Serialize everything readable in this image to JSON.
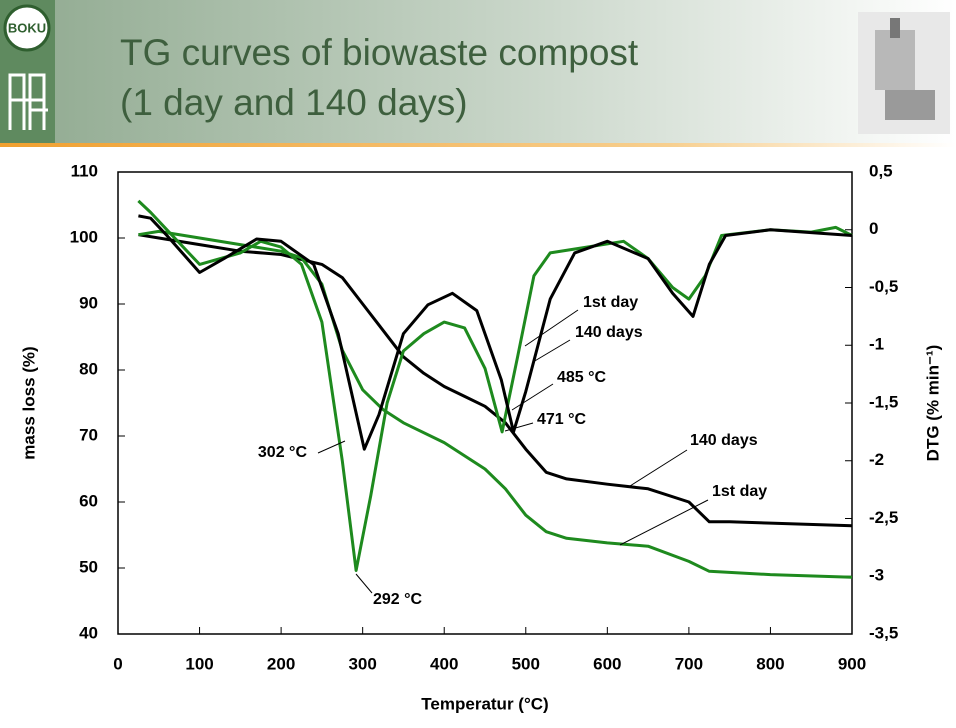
{
  "header": {
    "logo": "BOKU",
    "title_lines": [
      "TG curves of biowaste compost",
      "(1 day and 140 days)"
    ]
  },
  "chart_data": {
    "type": "line",
    "x_label": "Temperatur (°C)",
    "y_label": "mass loss (%)",
    "y2_label": "DTG (% min⁻¹)",
    "xlim": [
      0,
      900
    ],
    "xticks": [
      0,
      100,
      200,
      300,
      400,
      500,
      600,
      700,
      800,
      900
    ],
    "ylim": [
      40,
      110
    ],
    "yticks": [
      40,
      50,
      60,
      70,
      80,
      90,
      100,
      110
    ],
    "y2lim": [
      -3.5,
      0.5
    ],
    "y2ticks": [
      {
        "value": -3.5,
        "label": "-3,5"
      },
      -3,
      {
        "value": -2.5,
        "label": "-2,5"
      },
      -2,
      {
        "value": -1.5,
        "label": "-1,5"
      },
      -1,
      {
        "value": -0.5,
        "label": "-0,5"
      },
      0,
      {
        "value": 0.5,
        "label": "0,5"
      }
    ],
    "annotations": [
      "485 °C",
      "471 °C",
      "302 °C",
      "292 °C"
    ],
    "series": [
      {
        "name": "140 days",
        "color": "#000000",
        "axis": "y",
        "x": [
          25,
          50,
          100,
          150,
          200,
          250,
          275,
          300,
          325,
          350,
          375,
          400,
          425,
          450,
          475,
          500,
          525,
          550,
          600,
          650,
          700,
          725,
          750,
          800,
          900
        ],
        "values": [
          100.5,
          100,
          99,
          98,
          97.5,
          96,
          94,
          90,
          86,
          82,
          79.5,
          77.5,
          76,
          74.5,
          72,
          68,
          64.5,
          63.5,
          62.7,
          62,
          60,
          57,
          57,
          56.8,
          56.4
        ]
      },
      {
        "name": "1st day",
        "color": "#1e8a1e",
        "axis": "y",
        "x": [
          25,
          50,
          100,
          150,
          200,
          225,
          250,
          275,
          300,
          325,
          350,
          400,
          450,
          475,
          500,
          525,
          550,
          600,
          650,
          700,
          725,
          800,
          900
        ],
        "values": [
          100.5,
          101,
          100,
          99,
          98,
          97,
          93,
          83,
          77,
          74,
          72,
          69,
          65,
          62,
          58,
          55.5,
          54.5,
          53.8,
          53.3,
          51,
          49.5,
          49,
          48.6
        ]
      },
      {
        "name": "1st day",
        "color": "#1e8a1e",
        "axis": "y2",
        "x": [
          25,
          40,
          60,
          100,
          150,
          175,
          200,
          225,
          250,
          275,
          292,
          310,
          330,
          350,
          375,
          400,
          425,
          450,
          471,
          490,
          510,
          530,
          575,
          620,
          650,
          680,
          700,
          720,
          740,
          800,
          850,
          880,
          900
        ],
        "values": [
          0.25,
          0.15,
          0,
          -0.3,
          -0.2,
          -0.1,
          -0.15,
          -0.3,
          -0.8,
          -2,
          -2.95,
          -2.3,
          -1.5,
          -1.05,
          -0.9,
          -0.8,
          -0.85,
          -1.2,
          -1.75,
          -1.1,
          -0.4,
          -0.2,
          -0.15,
          -0.1,
          -0.25,
          -0.5,
          -0.6,
          -0.4,
          -0.05,
          0,
          -0.02,
          0.02,
          -0.05
        ]
      },
      {
        "name": "140 days",
        "color": "#000000",
        "axis": "y2",
        "x": [
          25,
          40,
          60,
          100,
          130,
          170,
          200,
          240,
          270,
          302,
          320,
          350,
          380,
          410,
          440,
          470,
          485,
          500,
          530,
          560,
          600,
          650,
          680,
          705,
          725,
          745,
          800,
          900
        ],
        "values": [
          0.12,
          0.1,
          -0.05,
          -0.37,
          -0.25,
          -0.08,
          -0.1,
          -0.3,
          -0.9,
          -1.9,
          -1.6,
          -0.9,
          -0.65,
          -0.55,
          -0.7,
          -1.3,
          -1.75,
          -1.4,
          -0.6,
          -0.2,
          -0.1,
          -0.25,
          -0.55,
          -0.75,
          -0.3,
          -0.05,
          0,
          -0.05
        ]
      }
    ]
  }
}
